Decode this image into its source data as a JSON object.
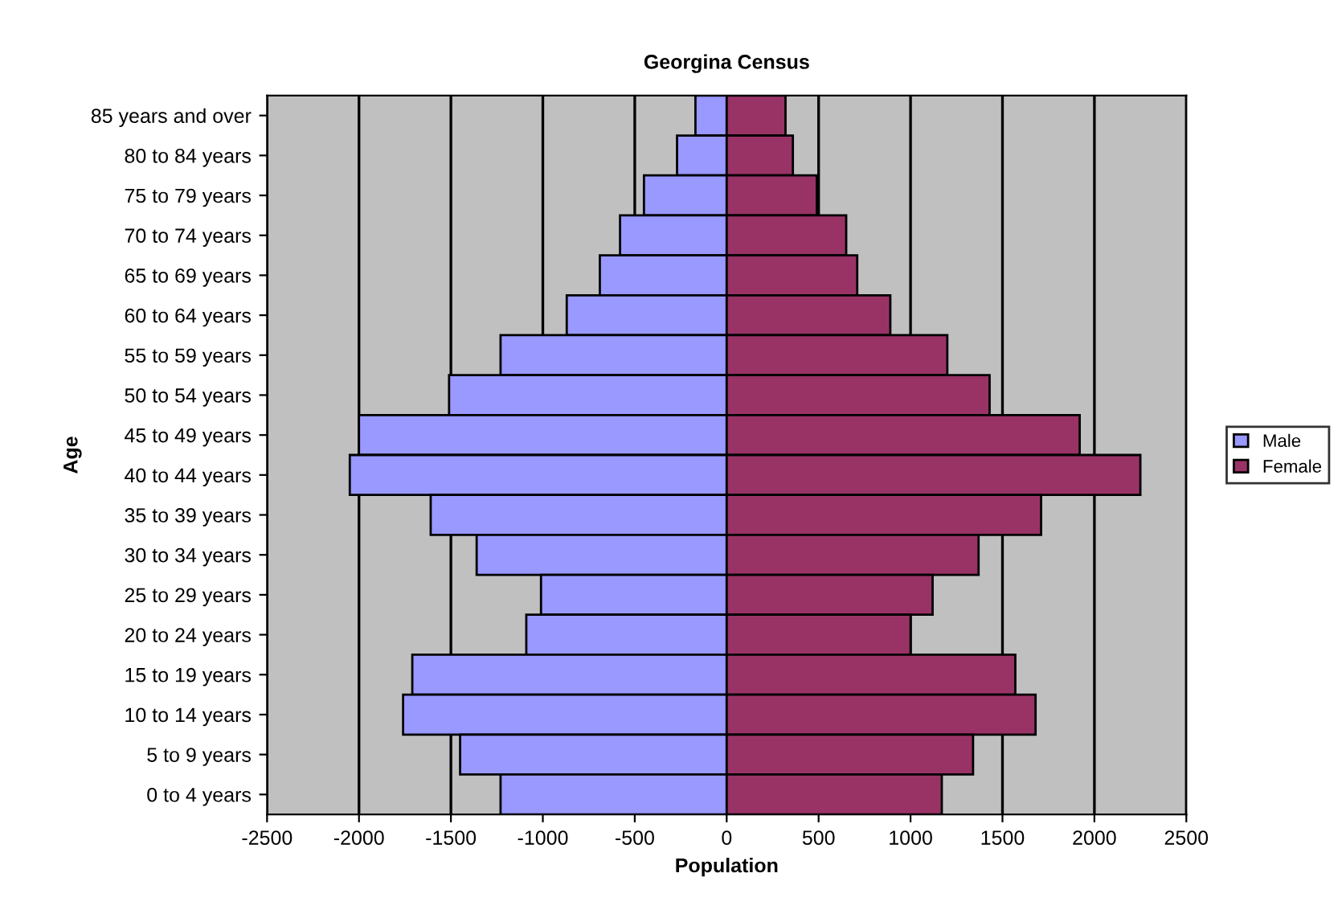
{
  "chart_data": {
    "type": "bar",
    "orientation": "horizontal",
    "stacked": true,
    "title": "Georgina Census",
    "xlabel": "Population",
    "ylabel": "Age",
    "categories": [
      "85 years and over",
      "80 to 84 years",
      "75 to 79 years",
      "70 to 74 years",
      "65 to 69 years",
      "60 to 64 years",
      "55 to 59 years",
      "50 to 54 years",
      "45 to 49 years",
      "40 to 44 years",
      "35 to 39 years",
      "30 to 34 years",
      "25 to 29 years",
      "20 to 24 years",
      "15 to 19 years",
      "10 to 14 years",
      "5 to 9 years",
      "0 to 4 years"
    ],
    "series": [
      {
        "name": "Male",
        "color": "#9999ff",
        "values": [
          -170,
          -270,
          -450,
          -580,
          -690,
          -870,
          -1230,
          -1510,
          -2000,
          -2050,
          -1610,
          -1360,
          -1010,
          -1090,
          -1710,
          -1760,
          -1450,
          -1230
        ]
      },
      {
        "name": "Female",
        "color": "#993366",
        "values": [
          320,
          360,
          490,
          650,
          710,
          890,
          1200,
          1430,
          1920,
          2250,
          1710,
          1370,
          1120,
          1000,
          1570,
          1680,
          1340,
          1170
        ]
      }
    ],
    "xlim": [
      -2500,
      2500
    ],
    "xticks": [
      -2500,
      -2000,
      -1500,
      -1000,
      -500,
      0,
      500,
      1000,
      1500,
      2000,
      2500
    ],
    "grid": "x",
    "legend": "right"
  }
}
